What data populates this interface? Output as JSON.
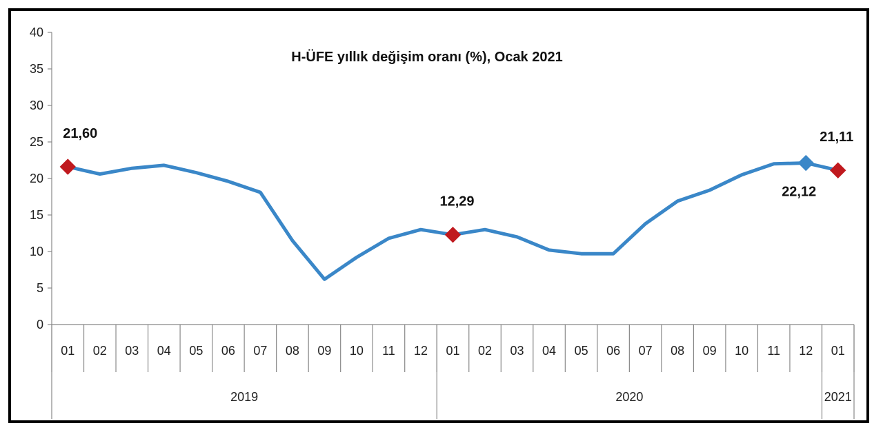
{
  "chart_data": {
    "type": "line",
    "title": "H-ÜFE yıllık değişim oranı (%), Ocak 2021",
    "xlabel": "",
    "ylabel": "",
    "ylim": [
      0,
      40
    ],
    "yticks": [
      "0",
      "5",
      "10",
      "15",
      "20",
      "25",
      "30",
      "35",
      "40"
    ],
    "categories": [
      "01",
      "02",
      "03",
      "04",
      "05",
      "06",
      "07",
      "08",
      "09",
      "10",
      "11",
      "12",
      "01",
      "02",
      "03",
      "04",
      "05",
      "06",
      "07",
      "08",
      "09",
      "10",
      "11",
      "12",
      "01"
    ],
    "year_groups": [
      {
        "label": "2019",
        "start": 0,
        "end": 11
      },
      {
        "label": "2020",
        "start": 12,
        "end": 23
      },
      {
        "label": "2021",
        "start": 24,
        "end": 24
      }
    ],
    "series": [
      {
        "values": [
          21.6,
          20.6,
          21.4,
          21.8,
          20.8,
          19.6,
          18.1,
          11.5,
          6.2,
          9.2,
          11.8,
          13.0,
          12.29,
          13.0,
          12.0,
          10.2,
          9.7,
          9.7,
          13.8,
          16.9,
          18.4,
          20.5,
          22.0,
          22.12,
          21.11
        ],
        "color": "#3a87c8"
      }
    ],
    "markers": [
      {
        "index": 0,
        "label": "21,60",
        "color": "#c0191e",
        "label_pos": "above"
      },
      {
        "index": 12,
        "label": "12,29",
        "color": "#c0191e",
        "label_pos": "above"
      },
      {
        "index": 23,
        "label": "22,12",
        "color": "#3a87c8",
        "label_pos": "below"
      },
      {
        "index": 24,
        "label": "21,11",
        "color": "#c0191e",
        "label_pos": "above"
      }
    ],
    "grid": false,
    "legend": "none"
  }
}
